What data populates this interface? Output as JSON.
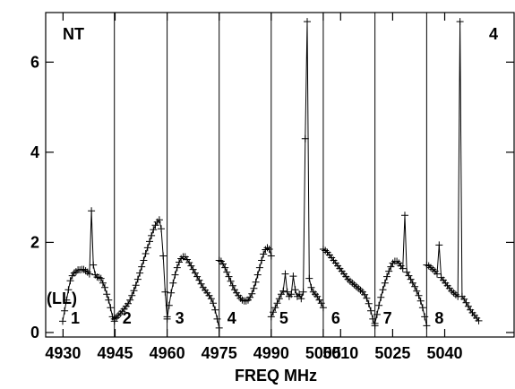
{
  "chart_data": {
    "type": "line",
    "title": "",
    "xlabel": "FREQ MHz",
    "ylabel": "",
    "xlim": [
      4925,
      5060
    ],
    "ylim": [
      -0.1,
      7.1
    ],
    "x_ticks": [
      4930,
      4945,
      4960,
      4975,
      4990,
      5005,
      5010,
      5025,
      5040
    ],
    "y_ticks": [
      0,
      2,
      4,
      6
    ],
    "corner_labels": {
      "left": "NT",
      "right": "4"
    },
    "polarization_label": "(LL)",
    "panel_boundaries": [
      4944.8,
      4960.0,
      4975.0,
      4990.0,
      5005.0,
      5019.9,
      5034.8
    ],
    "grid": false,
    "panels": [
      {
        "label": "1",
        "x_start": 4929.9,
        "x_end": 4944.8,
        "y": [
          0.25,
          0.48,
          0.72,
          0.95,
          1.15,
          1.26,
          1.32,
          1.35,
          1.39,
          1.39,
          1.4,
          1.4,
          1.37,
          1.34,
          1.3,
          2.7,
          1.5,
          1.28,
          1.23,
          1.22,
          1.2,
          1.1,
          1.0,
          0.85,
          0.72,
          0.55,
          0.35,
          0.25
        ]
      },
      {
        "label": "2",
        "x_start": 4944.8,
        "x_end": 4960.0,
        "y": [
          0.3,
          0.33,
          0.38,
          0.42,
          0.47,
          0.52,
          0.58,
          0.64,
          0.72,
          0.82,
          0.93,
          1.05,
          1.18,
          1.32,
          1.46,
          1.6,
          1.75,
          1.88,
          2.02,
          2.15,
          2.28,
          2.38,
          2.45,
          2.5,
          2.3,
          1.7,
          0.9,
          0.35
        ]
      },
      {
        "label": "3",
        "x_start": 4960.0,
        "x_end": 4975.0,
        "y": [
          0.3,
          0.6,
          0.88,
          1.1,
          1.28,
          1.44,
          1.56,
          1.64,
          1.68,
          1.68,
          1.62,
          1.55,
          1.48,
          1.4,
          1.32,
          1.24,
          1.16,
          1.08,
          1.0,
          0.94,
          0.88,
          0.82,
          0.75,
          0.65,
          0.5,
          0.3,
          0.1
        ]
      },
      {
        "label": "4",
        "x_start": 4975.0,
        "x_end": 4990.0,
        "y": [
          1.6,
          1.58,
          1.52,
          1.44,
          1.34,
          1.24,
          1.14,
          1.04,
          0.95,
          0.88,
          0.82,
          0.76,
          0.72,
          0.7,
          0.7,
          0.72,
          0.78,
          0.86,
          0.98,
          1.12,
          1.28,
          1.44,
          1.6,
          1.74,
          1.84,
          1.88,
          1.85,
          1.7
        ]
      },
      {
        "label": "5",
        "x_start": 4990.0,
        "x_end": 5005.0,
        "y": [
          0.35,
          0.45,
          0.55,
          0.65,
          0.75,
          0.85,
          0.92,
          1.3,
          0.9,
          0.8,
          0.85,
          1.25,
          0.95,
          0.8,
          0.85,
          0.75,
          0.9,
          4.3,
          6.9,
          1.2,
          1.0,
          0.9,
          0.85,
          0.8,
          0.72,
          0.65,
          0.55
        ]
      },
      {
        "label": "6",
        "x_start": 5005.0,
        "x_end": 5019.9,
        "y": [
          1.85,
          1.82,
          1.78,
          1.72,
          1.66,
          1.6,
          1.54,
          1.48,
          1.42,
          1.36,
          1.3,
          1.24,
          1.18,
          1.14,
          1.1,
          1.06,
          1.02,
          0.98,
          0.94,
          0.9,
          0.84,
          0.76,
          0.64,
          0.48,
          0.3,
          0.15
        ]
      },
      {
        "label": "7",
        "x_start": 5019.9,
        "x_end": 5034.8,
        "y": [
          0.2,
          0.4,
          0.6,
          0.78,
          0.95,
          1.1,
          1.24,
          1.36,
          1.46,
          1.54,
          1.58,
          1.58,
          1.54,
          1.48,
          1.42,
          2.6,
          1.34,
          1.26,
          1.18,
          1.1,
          1.02,
          0.92,
          0.82,
          0.7,
          0.55,
          0.35,
          0.15
        ]
      },
      {
        "label": "8",
        "x_start": 5034.8,
        "x_end": 5049.8,
        "y": [
          1.5,
          1.48,
          1.44,
          1.4,
          1.36,
          1.3,
          1.94,
          1.22,
          1.16,
          1.1,
          1.04,
          0.98,
          0.92,
          0.88,
          0.84,
          0.8,
          6.9,
          0.8,
          0.74,
          0.66,
          0.58,
          0.5,
          0.44,
          0.38,
          0.32,
          0.26
        ]
      }
    ]
  }
}
